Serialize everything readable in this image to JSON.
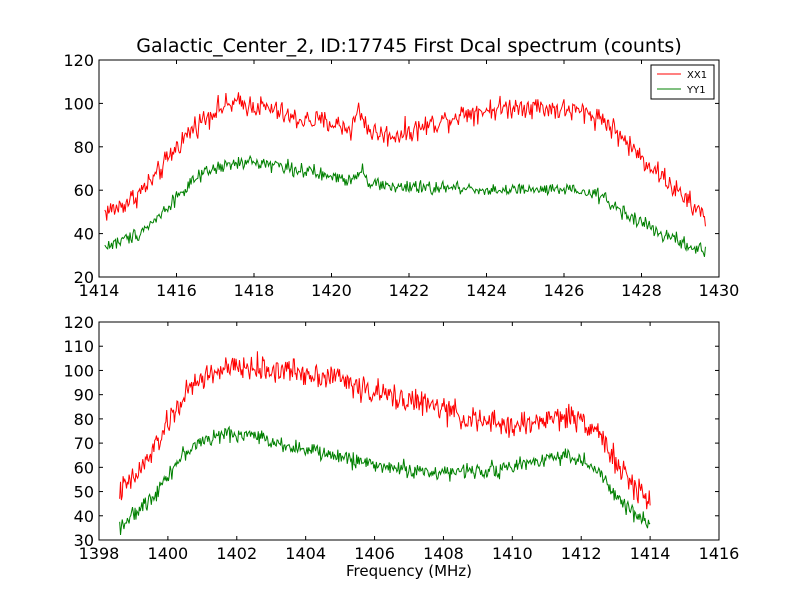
{
  "figure": {
    "title": "Galactic_Center_2, ID:17745 First Dcal spectrum (counts)",
    "xlabel": "Frequency (MHz)"
  },
  "chart_data": [
    {
      "type": "line",
      "title": "Galactic_Center_2, ID:17745 First Dcal spectrum (counts)",
      "xlabel": "",
      "ylabel": "",
      "xlim": [
        1414,
        1430
      ],
      "ylim": [
        20,
        120
      ],
      "xticks": [
        1414,
        1416,
        1418,
        1420,
        1422,
        1424,
        1426,
        1428,
        1430
      ],
      "yticks": [
        20,
        40,
        60,
        80,
        100,
        120
      ],
      "grid": false,
      "legend": {
        "placement": "top-right",
        "entries": [
          "XX1",
          "YY1"
        ]
      },
      "series": [
        {
          "name": "XX1",
          "color": "#ff0000",
          "x": [
            1414.15,
            1414.5,
            1415.0,
            1415.5,
            1416.0,
            1416.5,
            1417.0,
            1417.5,
            1418.0,
            1418.5,
            1419.0,
            1419.5,
            1420.0,
            1420.5,
            1420.7,
            1421.0,
            1421.5,
            1422.0,
            1422.5,
            1423.0,
            1423.5,
            1424.0,
            1424.5,
            1425.0,
            1425.5,
            1426.0,
            1426.5,
            1427.0,
            1427.5,
            1428.0,
            1428.5,
            1429.0,
            1429.35,
            1429.65
          ],
          "y": [
            50,
            52,
            58,
            67,
            80,
            90,
            97,
            100,
            99,
            97,
            93,
            92,
            91,
            88,
            97,
            87,
            85,
            87,
            90,
            93,
            96,
            97,
            98,
            99,
            98,
            97,
            96,
            93,
            84,
            75,
            67,
            58,
            52,
            48
          ]
        },
        {
          "name": "YY1",
          "color": "#008000",
          "x": [
            1414.15,
            1414.5,
            1415.0,
            1415.5,
            1416.0,
            1416.5,
            1417.0,
            1417.5,
            1418.0,
            1418.5,
            1419.0,
            1419.5,
            1420.0,
            1420.5,
            1420.8,
            1421.0,
            1421.5,
            1422.0,
            1422.5,
            1423.0,
            1423.5,
            1424.0,
            1424.5,
            1425.0,
            1425.5,
            1426.0,
            1426.5,
            1427.0,
            1427.5,
            1428.0,
            1428.5,
            1429.0,
            1429.35,
            1429.65
          ],
          "y": [
            34,
            36,
            40,
            47,
            57,
            65,
            70,
            72,
            73,
            72,
            70,
            68,
            66,
            65,
            70,
            63,
            62,
            61,
            61,
            61,
            61,
            60,
            60,
            60,
            60,
            60,
            59,
            57,
            50,
            45,
            40,
            36,
            33,
            32
          ]
        }
      ]
    },
    {
      "type": "line",
      "title": "",
      "xlabel": "Frequency (MHz)",
      "ylabel": "",
      "xlim": [
        1398,
        1416
      ],
      "ylim": [
        30,
        120
      ],
      "xticks": [
        1398,
        1400,
        1402,
        1404,
        1406,
        1408,
        1410,
        1412,
        1414,
        1416
      ],
      "yticks": [
        30,
        40,
        50,
        60,
        70,
        80,
        90,
        100,
        110,
        120
      ],
      "grid": false,
      "series": [
        {
          "name": "XX1",
          "color": "#ff0000",
          "x": [
            1398.6,
            1399.0,
            1399.5,
            1400.0,
            1400.5,
            1401.0,
            1401.5,
            1402.0,
            1402.5,
            1403.0,
            1403.5,
            1404.0,
            1404.5,
            1405.0,
            1405.5,
            1406.0,
            1406.5,
            1407.0,
            1407.5,
            1408.0,
            1408.5,
            1409.0,
            1409.5,
            1410.0,
            1410.5,
            1411.0,
            1411.5,
            1412.0,
            1412.5,
            1413.0,
            1413.5,
            1414.0
          ],
          "y": [
            50,
            55,
            65,
            78,
            90,
            97,
            100,
            101,
            101,
            100,
            100,
            99,
            98,
            97,
            93,
            91,
            89,
            88,
            86,
            84,
            81,
            79,
            78,
            77,
            78,
            80,
            81,
            80,
            75,
            62,
            52,
            47
          ]
        },
        {
          "name": "YY1",
          "color": "#008000",
          "x": [
            1398.6,
            1399.0,
            1399.5,
            1400.0,
            1400.5,
            1401.0,
            1401.5,
            1402.0,
            1402.5,
            1403.0,
            1403.5,
            1404.0,
            1404.5,
            1405.0,
            1405.5,
            1406.0,
            1406.5,
            1407.0,
            1407.5,
            1408.0,
            1408.5,
            1409.0,
            1409.5,
            1410.0,
            1410.5,
            1411.0,
            1411.5,
            1412.0,
            1412.5,
            1413.0,
            1413.5,
            1414.0
          ],
          "y": [
            36,
            40,
            47,
            57,
            66,
            71,
            73,
            74,
            73,
            71,
            69,
            67,
            66,
            64,
            63,
            61,
            60,
            59,
            58,
            58,
            58,
            59,
            59,
            60,
            62,
            64,
            65,
            63,
            58,
            48,
            41,
            37
          ]
        }
      ]
    }
  ]
}
